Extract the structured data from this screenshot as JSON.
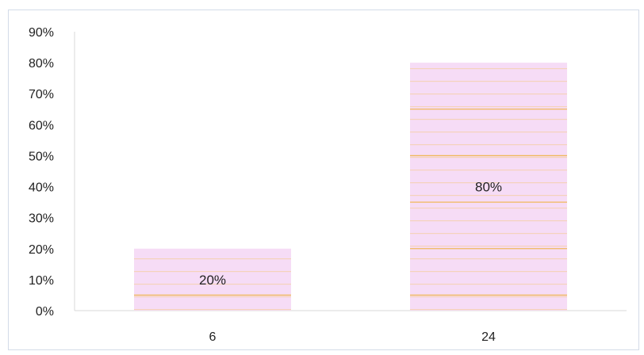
{
  "chart_data": {
    "type": "bar",
    "categories": [
      "6",
      "24"
    ],
    "values": [
      20,
      80
    ],
    "data_labels": [
      "20%",
      "80%"
    ],
    "ylim": [
      0,
      90
    ],
    "y_ticks": [
      "0%",
      "10%",
      "20%",
      "30%",
      "40%",
      "50%",
      "60%",
      "70%",
      "80%",
      "90%"
    ],
    "title": "",
    "xlabel": "",
    "ylabel": "",
    "grid": false,
    "legend": "none",
    "colors": {
      "bar_fill": "#f6dcf6",
      "bar_stripe": "#f0b54a",
      "frame_border": "#d3dbe8",
      "axis": "#d8d8d8"
    }
  }
}
